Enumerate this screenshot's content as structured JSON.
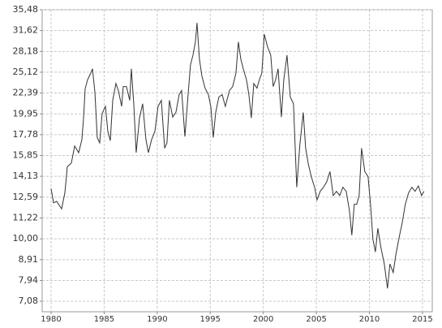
{
  "chart_data": {
    "type": "line",
    "log_scale_y": true,
    "grid": true,
    "x": [
      1980.0,
      1980.23,
      1980.53,
      1980.99,
      1981.3,
      1981.53,
      1981.91,
      1982.22,
      1982.6,
      1982.9,
      1983.06,
      1983.21,
      1983.44,
      1983.74,
      1983.9,
      1984.13,
      1984.35,
      1984.58,
      1984.81,
      1985.12,
      1985.35,
      1985.58,
      1985.81,
      1986.11,
      1986.34,
      1986.65,
      1986.8,
      1987.1,
      1987.41,
      1987.56,
      1987.79,
      1988.02,
      1988.33,
      1988.63,
      1988.94,
      1989.17,
      1989.47,
      1989.78,
      1990.08,
      1990.39,
      1990.7,
      1990.92,
      1991.15,
      1991.46,
      1991.76,
      1992.07,
      1992.3,
      1992.61,
      1992.91,
      1993.14,
      1993.37,
      1993.6,
      1993.75,
      1993.98,
      1994.21,
      1994.51,
      1994.82,
      1995.05,
      1995.28,
      1995.51,
      1995.81,
      1996.12,
      1996.42,
      1996.81,
      1997.11,
      1997.42,
      1997.65,
      1997.88,
      1998.11,
      1998.41,
      1998.64,
      1998.87,
      1999.1,
      1999.4,
      1999.63,
      1999.86,
      2000.09,
      2000.4,
      2000.7,
      2000.93,
      2001.16,
      2001.39,
      2001.7,
      2001.93,
      2002.23,
      2002.54,
      2002.84,
      2003.15,
      2003.45,
      2003.76,
      2003.99,
      2004.22,
      2004.52,
      2004.83,
      2005.06,
      2005.36,
      2005.67,
      2005.97,
      2006.28,
      2006.59,
      2006.89,
      2007.2,
      2007.5,
      2007.81,
      2008.11,
      2008.34,
      2008.57,
      2008.8,
      2009.03,
      2009.26,
      2009.56,
      2009.87,
      2010.1,
      2010.33,
      2010.56,
      2010.79,
      2011.09,
      2011.4,
      2011.7,
      2011.93,
      2012.24,
      2012.47,
      2012.77,
      2013.08,
      2013.38,
      2013.69,
      2014.0,
      2014.3,
      2014.61,
      2014.91,
      2015.14
    ],
    "series": [
      {
        "color": "#333333",
        "values": [
          13.2,
          12.2,
          12.3,
          11.8,
          12.9,
          14.9,
          15.2,
          16.7,
          16.1,
          17.3,
          19.5,
          22.9,
          24.1,
          25.0,
          25.6,
          22.5,
          17.5,
          17.0,
          20.0,
          20.8,
          18.1,
          17.2,
          21.5,
          23.6,
          22.7,
          20.8,
          23.2,
          23.2,
          21.5,
          25.6,
          21.1,
          16.1,
          19.5,
          21.1,
          17.3,
          16.1,
          17.3,
          18.1,
          20.8,
          21.5,
          16.5,
          17.0,
          21.5,
          19.6,
          20.1,
          22.2,
          22.7,
          17.6,
          22.2,
          26.2,
          27.6,
          29.7,
          33.0,
          27.0,
          24.6,
          23.0,
          22.2,
          20.8,
          17.5,
          20.1,
          21.9,
          22.2,
          20.8,
          22.7,
          23.2,
          25.0,
          29.7,
          27.0,
          25.6,
          24.1,
          22.2,
          19.5,
          23.6,
          23.0,
          24.1,
          25.0,
          31.0,
          28.9,
          27.6,
          23.2,
          24.1,
          25.6,
          19.6,
          24.1,
          27.6,
          21.9,
          21.1,
          13.3,
          16.9,
          20.1,
          16.5,
          15.2,
          14.1,
          13.3,
          12.4,
          13.0,
          13.3,
          13.7,
          14.5,
          12.7,
          13.0,
          12.7,
          13.3,
          13.0,
          11.7,
          10.2,
          12.1,
          12.1,
          12.7,
          16.5,
          14.5,
          14.1,
          12.1,
          9.97,
          9.3,
          10.6,
          9.5,
          8.7,
          7.6,
          8.7,
          8.3,
          9.1,
          10.0,
          10.9,
          12.1,
          12.9,
          13.3,
          13.0,
          13.4,
          12.7,
          13.0
        ]
      }
    ],
    "xlim": [
      1979.16,
      2015.92
    ],
    "xticks": [
      1980,
      1985,
      1990,
      1995,
      2000,
      2005,
      2010,
      2015
    ],
    "ylim": [
      6.68,
      35.48
    ],
    "yticks": [
      {
        "value": 7.08,
        "label": "7,08"
      },
      {
        "value": 7.94,
        "label": "7,94"
      },
      {
        "value": 8.91,
        "label": "8,91"
      },
      {
        "value": 10,
        "label": "10,00"
      },
      {
        "value": 11.22,
        "label": "11,22"
      },
      {
        "value": 12.59,
        "label": "12,59"
      },
      {
        "value": 14.13,
        "label": "14,13"
      },
      {
        "value": 15.85,
        "label": "15,85"
      },
      {
        "value": 17.78,
        "label": "17,78"
      },
      {
        "value": 19.95,
        "label": "19,95"
      },
      {
        "value": 22.39,
        "label": "22,39"
      },
      {
        "value": 25.12,
        "label": "25,12"
      },
      {
        "value": 28.18,
        "label": "28,18"
      },
      {
        "value": 31.62,
        "label": "31,62"
      },
      {
        "value": 35.48,
        "label": "35,48"
      }
    ]
  }
}
